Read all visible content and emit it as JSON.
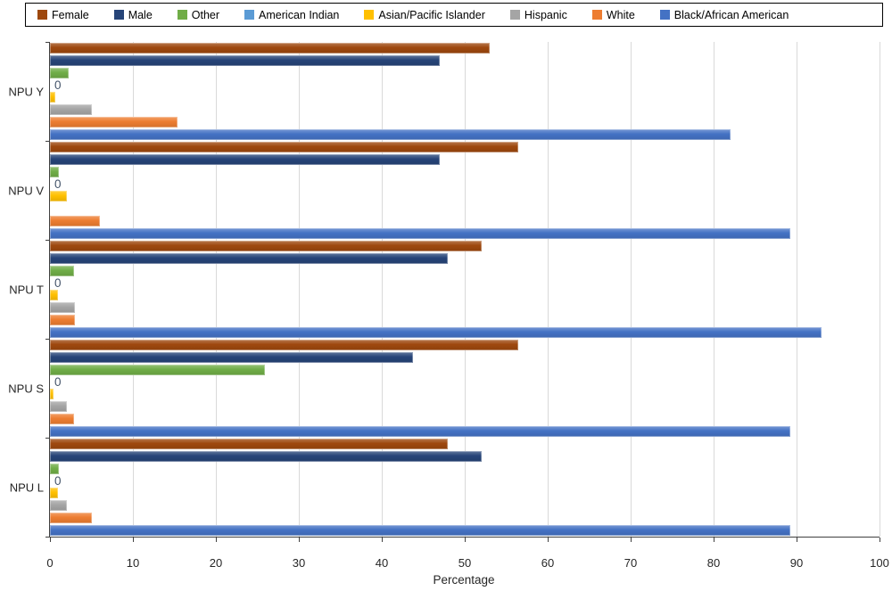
{
  "legend": {
    "position": "top"
  },
  "chart_data": {
    "type": "bar",
    "orientation": "horizontal",
    "title": "",
    "xlabel": "Percentage",
    "ylabel": "",
    "xlim": [
      0,
      100
    ],
    "xticks": [
      0,
      10,
      20,
      30,
      40,
      50,
      60,
      70,
      80,
      90,
      100
    ],
    "grid": true,
    "legend_position": "top",
    "zero_label_text": "0",
    "categories": [
      "NPU Y",
      "NPU V",
      "NPU T",
      "NPU S",
      "NPU L"
    ],
    "series": [
      {
        "name": "Female",
        "color": "#9E480E",
        "values": [
          53,
          56.4,
          52,
          56.4,
          48
        ]
      },
      {
        "name": "Male",
        "color": "#264478",
        "values": [
          47,
          47,
          48,
          43.8,
          52
        ]
      },
      {
        "name": "Other",
        "color": "#70AD47",
        "values": [
          2.3,
          1.1,
          2.9,
          25.9,
          1.1
        ]
      },
      {
        "name": "American Indian",
        "color": "#5B9BD5",
        "values": [
          0,
          0,
          0,
          0,
          0
        ],
        "label_zeros": true
      },
      {
        "name": "Asian/Pacific Islander",
        "color": "#FFC000",
        "values": [
          0.6,
          2,
          1,
          0.4,
          1
        ]
      },
      {
        "name": "Hispanic",
        "color": "#A5A5A5",
        "values": [
          5,
          0,
          3,
          2,
          2
        ]
      },
      {
        "name": "White",
        "color": "#ED7D31",
        "values": [
          15.4,
          6,
          3,
          2.9,
          5
        ]
      },
      {
        "name": "Black/African American",
        "color": "#4472C4",
        "values": [
          82,
          89.3,
          93,
          89.3,
          89.3
        ]
      }
    ]
  }
}
